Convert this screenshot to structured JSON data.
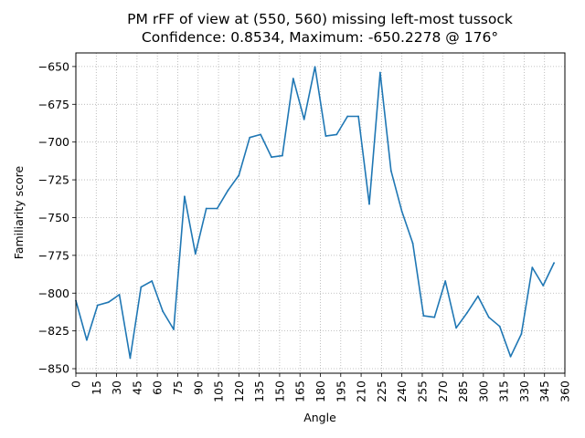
{
  "chart_data": {
    "type": "line",
    "title": "PM rFF of view at (550, 560) missing left-most tussock",
    "subtitle": "Confidence: 0.8534, Maximum: -650.2278 @ 176°",
    "xlabel": "Angle",
    "ylabel": "Familiarity score",
    "xlim": [
      0,
      360
    ],
    "ylim": [
      -853,
      -641
    ],
    "grid": true,
    "xticks": [
      0,
      15,
      30,
      45,
      60,
      75,
      90,
      105,
      120,
      135,
      150,
      165,
      180,
      195,
      210,
      225,
      240,
      255,
      270,
      285,
      300,
      315,
      330,
      345,
      360
    ],
    "yticks": [
      -850,
      -825,
      -800,
      -775,
      -750,
      -725,
      -700,
      -675,
      -650
    ],
    "series": [
      {
        "color": "#1f77b4",
        "x": [
          0,
          8,
          16,
          24,
          32,
          40,
          48,
          56,
          64,
          72,
          80,
          88,
          96,
          104,
          112,
          120,
          128,
          136,
          144,
          152,
          160,
          168,
          176,
          184,
          192,
          200,
          208,
          216,
          224,
          232,
          240,
          248,
          256,
          264,
          272,
          280,
          288,
          296,
          304,
          312,
          320,
          328,
          336,
          344,
          352
        ],
        "values": [
          -805,
          -831,
          -808,
          -806,
          -801,
          -843,
          -796,
          -792,
          -812,
          -824,
          -736,
          -774,
          -744,
          -744,
          -732,
          -722,
          -697,
          -695,
          -710,
          -709,
          -658,
          -685,
          -650.2,
          -696,
          -695,
          -683,
          -683,
          -741,
          -654,
          -719,
          -746,
          -767,
          -815,
          -816,
          -792,
          -823,
          -813,
          -802,
          -816,
          -822,
          -842,
          -827,
          -783,
          -795,
          -780
        ]
      }
    ]
  }
}
